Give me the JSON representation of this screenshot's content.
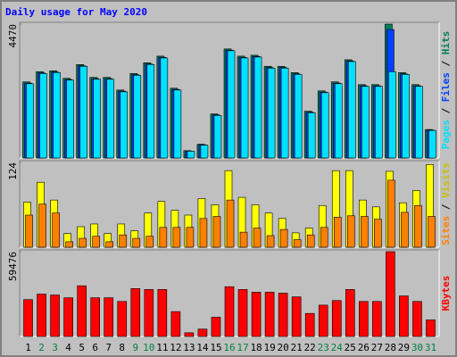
{
  "chart_data": [
    {
      "type": "bar",
      "title": "Daily usage for May 2020",
      "categories": [
        "1",
        "2",
        "3",
        "4",
        "5",
        "6",
        "7",
        "8",
        "9",
        "10",
        "11",
        "12",
        "13",
        "14",
        "15",
        "16",
        "17",
        "18",
        "19",
        "20",
        "21",
        "22",
        "23",
        "24",
        "25",
        "26",
        "27",
        "28",
        "29",
        "30",
        "31"
      ],
      "category_colors": [
        "#000000",
        "#008040",
        "#008040",
        "#000000",
        "#000000",
        "#000000",
        "#000000",
        "#000000",
        "#008040",
        "#008040",
        "#000000",
        "#000000",
        "#000000",
        "#000000",
        "#000000",
        "#008040",
        "#008040",
        "#000000",
        "#000000",
        "#000000",
        "#000000",
        "#000000",
        "#008040",
        "#008040",
        "#000000",
        "#000000",
        "#000000",
        "#000000",
        "#000000",
        "#008040",
        "#008040"
      ],
      "legend_separator": " / ",
      "series": [
        {
          "name": "Hits",
          "color": "#00805c",
          "values": [
            2540,
            2880,
            2910,
            2660,
            3120,
            2690,
            2690,
            2270,
            2820,
            3180,
            3400,
            2330,
            245,
            460,
            1470,
            3640,
            3400,
            3430,
            3060,
            3060,
            2850,
            1560,
            2240,
            2540,
            3280,
            2450,
            2450,
            4470,
            2850,
            2450,
            950
          ]
        },
        {
          "name": "Files",
          "color": "#0040ff",
          "values": [
            2500,
            2840,
            2870,
            2620,
            3080,
            2650,
            2650,
            2230,
            2780,
            3140,
            3360,
            2290,
            230,
            440,
            1440,
            3600,
            3360,
            3390,
            3020,
            3020,
            2810,
            1530,
            2200,
            2500,
            3240,
            2410,
            2410,
            4290,
            2810,
            2410,
            930
          ]
        },
        {
          "name": "Pages",
          "color": "#00e0ff",
          "values": [
            2480,
            2820,
            2850,
            2600,
            3060,
            2630,
            2630,
            2210,
            2760,
            3120,
            3340,
            2270,
            225,
            430,
            1420,
            3580,
            3340,
            3370,
            3000,
            3000,
            2790,
            1510,
            2180,
            2480,
            3220,
            2390,
            2390,
            2880,
            2790,
            2390,
            920
          ]
        }
      ],
      "ylim": [
        0,
        4470
      ],
      "yticks": [
        4470
      ]
    },
    {
      "type": "bar",
      "legend_separator": " / ",
      "series": [
        {
          "name": "Visits",
          "color": "#ffff00",
          "values": [
            66,
            95,
            69,
            20,
            30,
            34,
            20,
            34,
            24,
            50,
            67,
            54,
            47,
            71,
            62,
            112,
            73,
            62,
            50,
            42,
            21,
            28,
            61,
            112,
            112,
            69,
            59,
            111,
            65,
            83,
            121
          ]
        },
        {
          "name": "Sites",
          "color": "#ff8000",
          "values": [
            47,
            63,
            50,
            8,
            13,
            16,
            8,
            18,
            13,
            16,
            29,
            29,
            29,
            42,
            45,
            69,
            22,
            28,
            17,
            26,
            11,
            18,
            29,
            44,
            46,
            45,
            41,
            98,
            51,
            61,
            45
          ]
        }
      ],
      "ylim": [
        0,
        124
      ],
      "yticks": [
        124
      ]
    },
    {
      "type": "bar",
      "series": [
        {
          "name": "KBytes",
          "color": "#ff0000",
          "values": [
            25860,
            29740,
            29090,
            27150,
            35560,
            27150,
            27150,
            24570,
            33620,
            32970,
            32970,
            17450,
            2590,
            5170,
            13580,
            34910,
            32970,
            31030,
            31030,
            30380,
            27800,
            16160,
            21980,
            25210,
            32970,
            24570,
            24570,
            59476,
            28450,
            24570,
            11640
          ]
        }
      ],
      "ylim": [
        0,
        59476
      ],
      "yticks": [
        59476
      ]
    }
  ]
}
